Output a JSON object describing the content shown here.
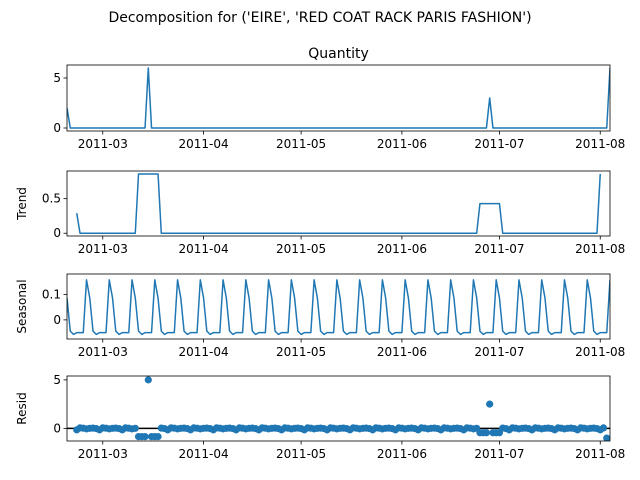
{
  "figure": {
    "suptitle": "Decomposition for ('EIRE', 'RED COAT RACK PARIS FASHION')",
    "series_color": "#1f77b4"
  },
  "chart_data": [
    {
      "type": "line",
      "title": "Quantity",
      "ylabel": "",
      "xlabel": "",
      "x_start": "2011-02-18",
      "x_end": "2011-08-04",
      "ylim": [
        -0.3,
        6.3
      ],
      "yticks": [
        0,
        5
      ],
      "xticks": [
        "2011-03",
        "2011-04",
        "2011-05",
        "2011-06",
        "2011-07",
        "2011-08"
      ],
      "points": [
        [
          "2011-02-18",
          2.0
        ],
        [
          "2011-02-19",
          0
        ],
        [
          "2011-03-14",
          0
        ],
        [
          "2011-03-15",
          6
        ],
        [
          "2011-03-16",
          0
        ],
        [
          "2011-06-27",
          0
        ],
        [
          "2011-06-28",
          3
        ],
        [
          "2011-06-29",
          0
        ],
        [
          "2011-08-03",
          0
        ],
        [
          "2011-08-04",
          6
        ]
      ]
    },
    {
      "type": "line",
      "title": "",
      "ylabel": "Trend",
      "xlabel": "",
      "x_start": "2011-02-18",
      "x_end": "2011-08-04",
      "ylim": [
        -0.04,
        0.9
      ],
      "yticks": [
        0.0,
        0.5
      ],
      "xticks": [
        "2011-03",
        "2011-04",
        "2011-05",
        "2011-06",
        "2011-07",
        "2011-08"
      ],
      "points": [
        [
          "2011-02-21",
          0.29
        ],
        [
          "2011-02-22",
          0
        ],
        [
          "2011-03-11",
          0
        ],
        [
          "2011-03-12",
          0.857
        ],
        [
          "2011-03-18",
          0.857
        ],
        [
          "2011-03-19",
          0
        ],
        [
          "2011-06-24",
          0
        ],
        [
          "2011-06-25",
          0.429
        ],
        [
          "2011-07-01",
          0.429
        ],
        [
          "2011-07-02",
          0
        ],
        [
          "2011-07-31",
          0
        ],
        [
          "2011-08-01",
          0.857
        ]
      ]
    },
    {
      "type": "line",
      "title": "",
      "ylabel": "Seasonal",
      "xlabel": "",
      "x_start": "2011-02-18",
      "x_end": "2011-08-04",
      "ylim": [
        -0.075,
        0.18
      ],
      "yticks": [
        0.0,
        0.1
      ],
      "xticks": [
        "2011-03",
        "2011-04",
        "2011-05",
        "2011-06",
        "2011-07",
        "2011-08"
      ],
      "period": 7,
      "first_peak": "2011-02-24",
      "pattern": [
        0.157,
        0.086,
        -0.044,
        -0.057,
        -0.05,
        -0.05,
        -0.05
      ]
    },
    {
      "type": "scatter",
      "title": "",
      "ylabel": "Resid",
      "xlabel": "",
      "x_start": "2011-02-18",
      "x_end": "2011-08-04",
      "ylim": [
        -1.3,
        5.4
      ],
      "yticks": [
        0,
        5
      ],
      "xticks": [
        "2011-03",
        "2011-04",
        "2011-05",
        "2011-06",
        "2011-07",
        "2011-08"
      ],
      "zero_line": true,
      "points_start": "2011-02-21",
      "points_end": "2011-08-03",
      "outliers": [
        [
          "2011-03-15",
          5.0
        ],
        [
          "2011-06-28",
          2.5
        ],
        [
          "2011-08-03",
          -1.0
        ],
        [
          "2011-03-12",
          -0.85
        ],
        [
          "2011-03-13",
          -0.85
        ],
        [
          "2011-03-14",
          -0.85
        ],
        [
          "2011-03-16",
          -0.85
        ],
        [
          "2011-03-17",
          -0.85
        ],
        [
          "2011-03-18",
          -0.85
        ],
        [
          "2011-06-25",
          -0.45
        ],
        [
          "2011-06-26",
          -0.45
        ],
        [
          "2011-06-27",
          -0.45
        ],
        [
          "2011-06-29",
          -0.45
        ],
        [
          "2011-06-30",
          -0.45
        ],
        [
          "2011-07-01",
          -0.45
        ]
      ]
    }
  ]
}
